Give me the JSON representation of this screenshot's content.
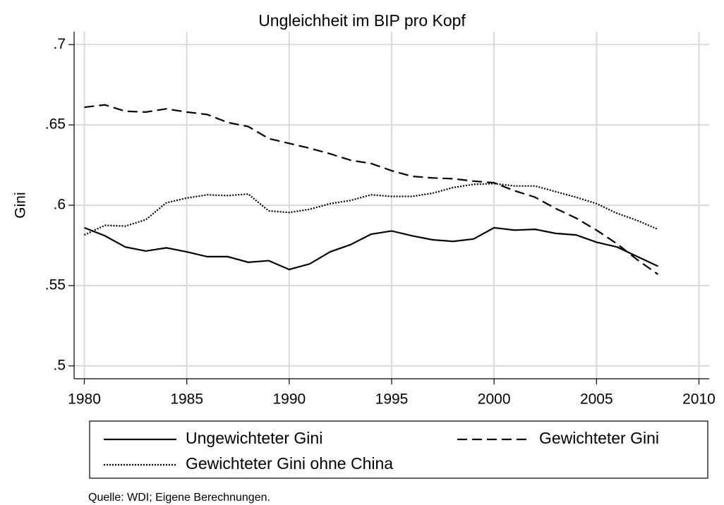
{
  "chart_data": {
    "type": "line",
    "title": "Ungleichheit im BIP pro Kopf",
    "y_label": "Gini",
    "note": "Quelle: WDI; Eigene Berechnungen.",
    "x": [
      1980,
      1981,
      1982,
      1983,
      1984,
      1985,
      1986,
      1987,
      1988,
      1989,
      1990,
      1991,
      1992,
      1993,
      1994,
      1995,
      1996,
      1997,
      1998,
      1999,
      2000,
      2001,
      2002,
      2003,
      2004,
      2005,
      2006,
      2007,
      2008
    ],
    "series": [
      {
        "name": "Ungewichteter Gini",
        "color": "#000000",
        "dash": "solid",
        "values": [
          0.586,
          0.581,
          0.574,
          0.5715,
          0.5735,
          0.571,
          0.568,
          0.568,
          0.5645,
          0.5655,
          0.56,
          0.5635,
          0.571,
          0.5755,
          0.582,
          0.584,
          0.581,
          0.5785,
          0.5775,
          0.579,
          0.586,
          0.5845,
          0.585,
          0.5825,
          0.5815,
          0.577,
          0.574,
          0.568,
          0.562
        ]
      },
      {
        "name": "Gewichteter Gini",
        "color": "#000000",
        "dash": "dashed",
        "values": [
          0.661,
          0.6625,
          0.6585,
          0.658,
          0.66,
          0.658,
          0.6565,
          0.6515,
          0.649,
          0.6415,
          0.6385,
          0.6355,
          0.632,
          0.628,
          0.626,
          0.6215,
          0.618,
          0.617,
          0.6165,
          0.615,
          0.614,
          0.609,
          0.605,
          0.598,
          0.592,
          0.5845,
          0.576,
          0.566,
          0.557
        ]
      },
      {
        "name": "Gewichteter Gini ohne China",
        "color": "#000000",
        "dash": "dotted",
        "values": [
          0.5815,
          0.5875,
          0.587,
          0.591,
          0.6015,
          0.6045,
          0.6065,
          0.606,
          0.607,
          0.5965,
          0.5955,
          0.5975,
          0.601,
          0.603,
          0.6065,
          0.6055,
          0.6055,
          0.6075,
          0.611,
          0.613,
          0.6135,
          0.612,
          0.612,
          0.6085,
          0.605,
          0.601,
          0.595,
          0.5905,
          0.585
        ]
      }
    ],
    "xlim": [
      1979.5,
      2010.5
    ],
    "xticks": [
      1980,
      1985,
      1990,
      1995,
      2000,
      2005,
      2010
    ],
    "ylim": [
      0.492,
      0.708
    ],
    "yticks": [
      {
        "value": 0.5,
        "label": ".5"
      },
      {
        "value": 0.55,
        "label": ".55"
      },
      {
        "value": 0.6,
        "label": ".6"
      },
      {
        "value": 0.65,
        "label": ".65"
      },
      {
        "value": 0.7,
        "label": ".7"
      }
    ],
    "grid": true,
    "legend": "bottom"
  }
}
